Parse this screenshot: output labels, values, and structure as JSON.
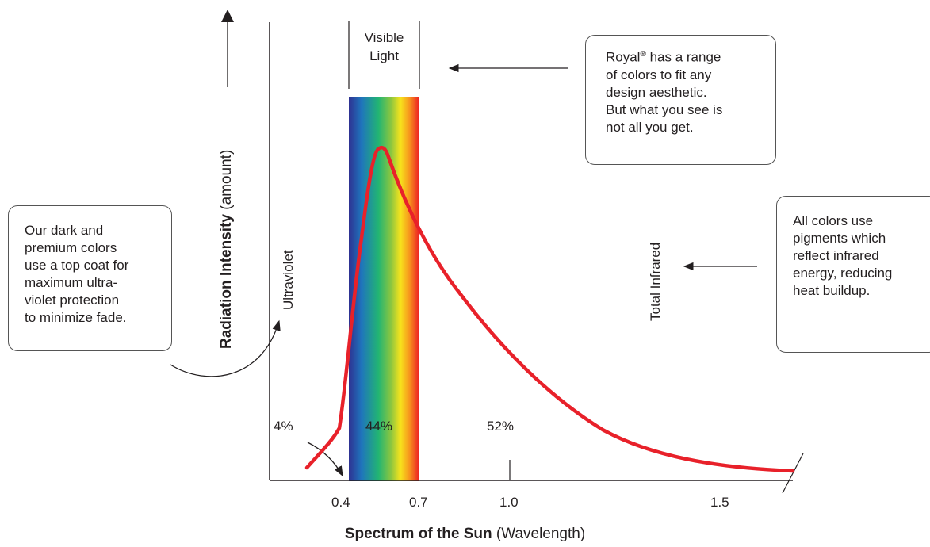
{
  "diagram": {
    "y_axis_label_bold": "Radiation Intensity",
    "y_axis_label_rest": "(amount)",
    "x_axis_label_bold": "Spectrum of the Sun",
    "x_axis_label_rest": "(Wavelength)",
    "x_ticks": [
      "0.4",
      "0.7",
      "1.0",
      "1.5"
    ],
    "visible_light_label": [
      "Visible",
      "Light"
    ],
    "ultraviolet_label": "Ultraviolet",
    "infrared_label": "Total Infrared",
    "percentages": {
      "ultraviolet": "4%",
      "visible": "44%",
      "infrared": "52%"
    },
    "callouts": {
      "visible": [
        "Royal",
        "®",
        " has a range",
        "of colors to fit any",
        "design aesthetic.",
        "But what you see is",
        "not all you get."
      ],
      "ultraviolet": [
        "Our dark and",
        "premium colors",
        "use a top coat for",
        "maximum ultra-",
        "violet protection",
        "to minimize fade."
      ],
      "infrared": [
        "All colors use",
        "pigments which",
        "reflect infrared",
        "energy, reducing",
        "heat buildup."
      ]
    },
    "colors": {
      "curve": "#e8212a",
      "text": "#231f20",
      "spectrum": [
        "#2e3192",
        "#1f75bc",
        "#22b573",
        "#8cc63f",
        "#f7e41c",
        "#f7941d",
        "#ed1c24"
      ]
    }
  }
}
